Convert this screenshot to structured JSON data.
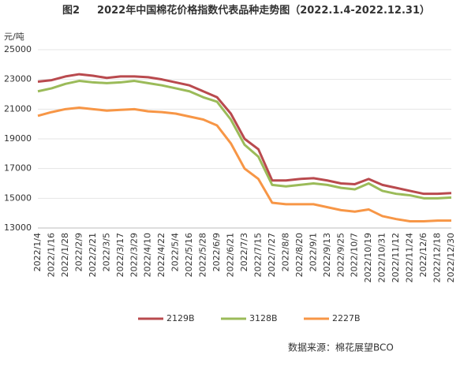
{
  "chart_data": {
    "type": "line",
    "figure_label": "图2",
    "title": "2022年中国棉花价格指数代表品种走势图（2022.1.4-2022.12.31）",
    "y_unit": "元/吨",
    "source": "数据来源：棉花展望BCO",
    "categories": [
      "2022/1/4",
      "2022/1/16",
      "2022/1/28",
      "2022/2/9",
      "2022/2/21",
      "2022/3/5",
      "2022/3/17",
      "2022/3/29",
      "2022/4/10",
      "2022/4/22",
      "2022/5/4",
      "2022/5/16",
      "2022/5/28",
      "2022/6/9",
      "2022/6/21",
      "2022/7/3",
      "2022/7/15",
      "2022/7/27",
      "2022/8/8",
      "2022/8/20",
      "2022/9/1",
      "2022/9/13",
      "2022/9/25",
      "2022/10/7",
      "2022/10/19",
      "2022/10/31",
      "2022/11/12",
      "2022/11/24",
      "2022/12/6",
      "2022/12/18",
      "2022/12/30"
    ],
    "series": [
      {
        "name": "2129B",
        "color": "#b94a4e",
        "values": [
          22850,
          22950,
          23200,
          23350,
          23250,
          23100,
          23200,
          23200,
          23150,
          23000,
          22800,
          22600,
          22200,
          21800,
          20700,
          19000,
          18300,
          16200,
          16200,
          16300,
          16350,
          16200,
          16000,
          15950,
          16300,
          15900,
          15700,
          15500,
          15300,
          15300,
          15350
        ]
      },
      {
        "name": "3128B",
        "color": "#9bbb59",
        "values": [
          22200,
          22400,
          22700,
          22900,
          22800,
          22750,
          22800,
          22900,
          22750,
          22600,
          22400,
          22200,
          21800,
          21500,
          20300,
          18600,
          17800,
          15900,
          15800,
          15900,
          16000,
          15900,
          15700,
          15600,
          16000,
          15500,
          15300,
          15200,
          15000,
          15000,
          15050
        ]
      },
      {
        "name": "2227B",
        "color": "#f79646",
        "values": [
          20550,
          20800,
          21000,
          21100,
          21000,
          20900,
          20950,
          21000,
          20850,
          20800,
          20700,
          20500,
          20300,
          19900,
          18700,
          17000,
          16300,
          14700,
          14600,
          14600,
          14600,
          14400,
          14200,
          14100,
          14250,
          13800,
          13600,
          13450,
          13450,
          13500,
          13500
        ]
      }
    ],
    "ylim": [
      13000,
      25000
    ],
    "yticks": [
      13000,
      15000,
      17000,
      19000,
      21000,
      23000,
      25000
    ],
    "grid": true
  }
}
